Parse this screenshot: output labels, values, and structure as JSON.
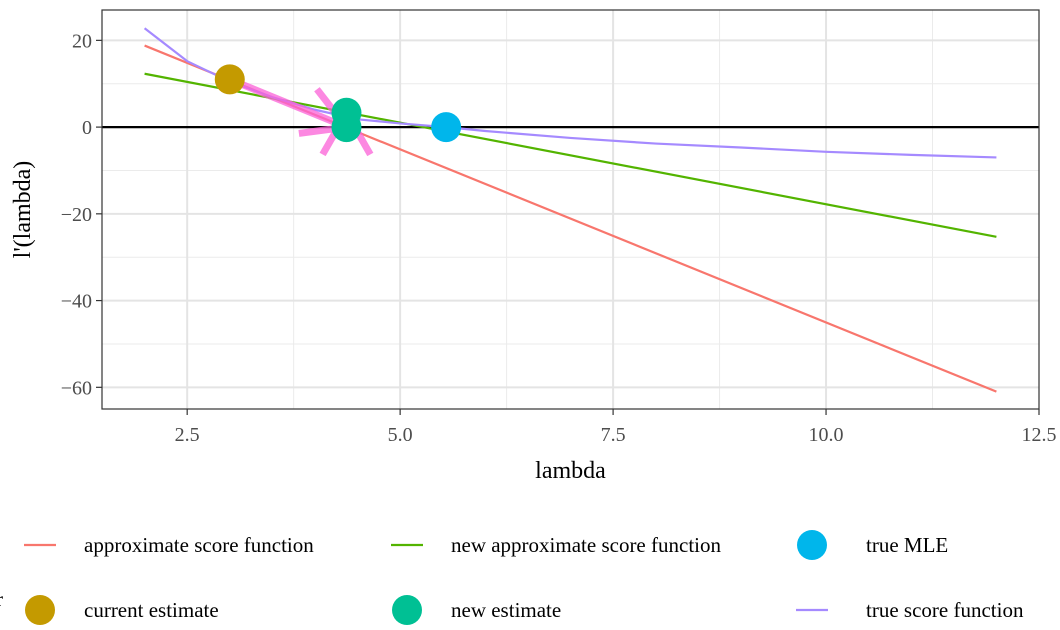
{
  "chart_data": {
    "type": "line",
    "xlabel": "lambda",
    "ylabel": "l'(lambda)",
    "xlim": [
      1.5,
      12.5
    ],
    "ylim": [
      -65,
      27
    ],
    "x_ticks": [
      2.5,
      5.0,
      7.5,
      10.0,
      12.5
    ],
    "x_tick_labels": [
      "2.5",
      "5.0",
      "7.5",
      "10.0",
      "12.5"
    ],
    "y_ticks": [
      20,
      0,
      -20,
      -40,
      -60
    ],
    "y_tick_labels": [
      "20",
      "0",
      "−20",
      "−40",
      "−60"
    ],
    "grid": true,
    "hline_y": 0,
    "series": [
      {
        "name": "approximate score function",
        "kind": "line",
        "color": "#F8766D",
        "x": [
          2,
          12
        ],
        "y": [
          18.8,
          -61
        ]
      },
      {
        "name": "new approximate score function",
        "kind": "line",
        "color": "#53B400",
        "x": [
          2,
          12
        ],
        "y": [
          12.3,
          -25.3
        ]
      },
      {
        "name": "true score function",
        "kind": "line",
        "color": "#A58AFF",
        "x": [
          2,
          2.5,
          3,
          3.5,
          4,
          4.5,
          5,
          5.54,
          6,
          7,
          8,
          9,
          10,
          11,
          12
        ],
        "y": [
          22.8,
          15.2,
          10.5,
          6.9,
          4.0,
          1.8,
          0.85,
          0,
          -0.9,
          -2.5,
          -3.8,
          -4.7,
          -5.7,
          -6.4,
          -7.0
        ]
      },
      {
        "name": "current estimate",
        "kind": "point",
        "color": "#C49A00",
        "x": [
          3.0
        ],
        "y": [
          11.0
        ]
      },
      {
        "name": "new estimate",
        "kind": "point",
        "color": "#00C094",
        "x": [
          4.37,
          4.37
        ],
        "y": [
          3.3,
          0
        ]
      },
      {
        "name": "true MLE",
        "kind": "point",
        "color": "#00B6EB",
        "x": [
          5.54
        ],
        "y": [
          0
        ]
      }
    ],
    "arrows": [
      {
        "color": "#FB61D7",
        "from": [
          3.0,
          11.0
        ],
        "to": [
          4.37,
          0
        ]
      },
      {
        "color": "#FB61D7",
        "from": [
          4.37,
          0
        ],
        "to": [
          4.37,
          3.3
        ]
      }
    ],
    "legend": {
      "position": "bottom",
      "title": "r",
      "rows": [
        [
          {
            "label": "approximate score function",
            "color": "#F8766D",
            "key": "line"
          },
          {
            "label": "new approximate score function",
            "color": "#53B400",
            "key": "line"
          },
          {
            "label": "true MLE",
            "color": "#00B6EB",
            "key": "point"
          }
        ],
        [
          {
            "label": "current estimate",
            "color": "#C49A00",
            "key": "point"
          },
          {
            "label": "new estimate",
            "color": "#00C094",
            "key": "point"
          },
          {
            "label": "true score function",
            "color": "#A58AFF",
            "key": "line"
          }
        ]
      ]
    }
  }
}
